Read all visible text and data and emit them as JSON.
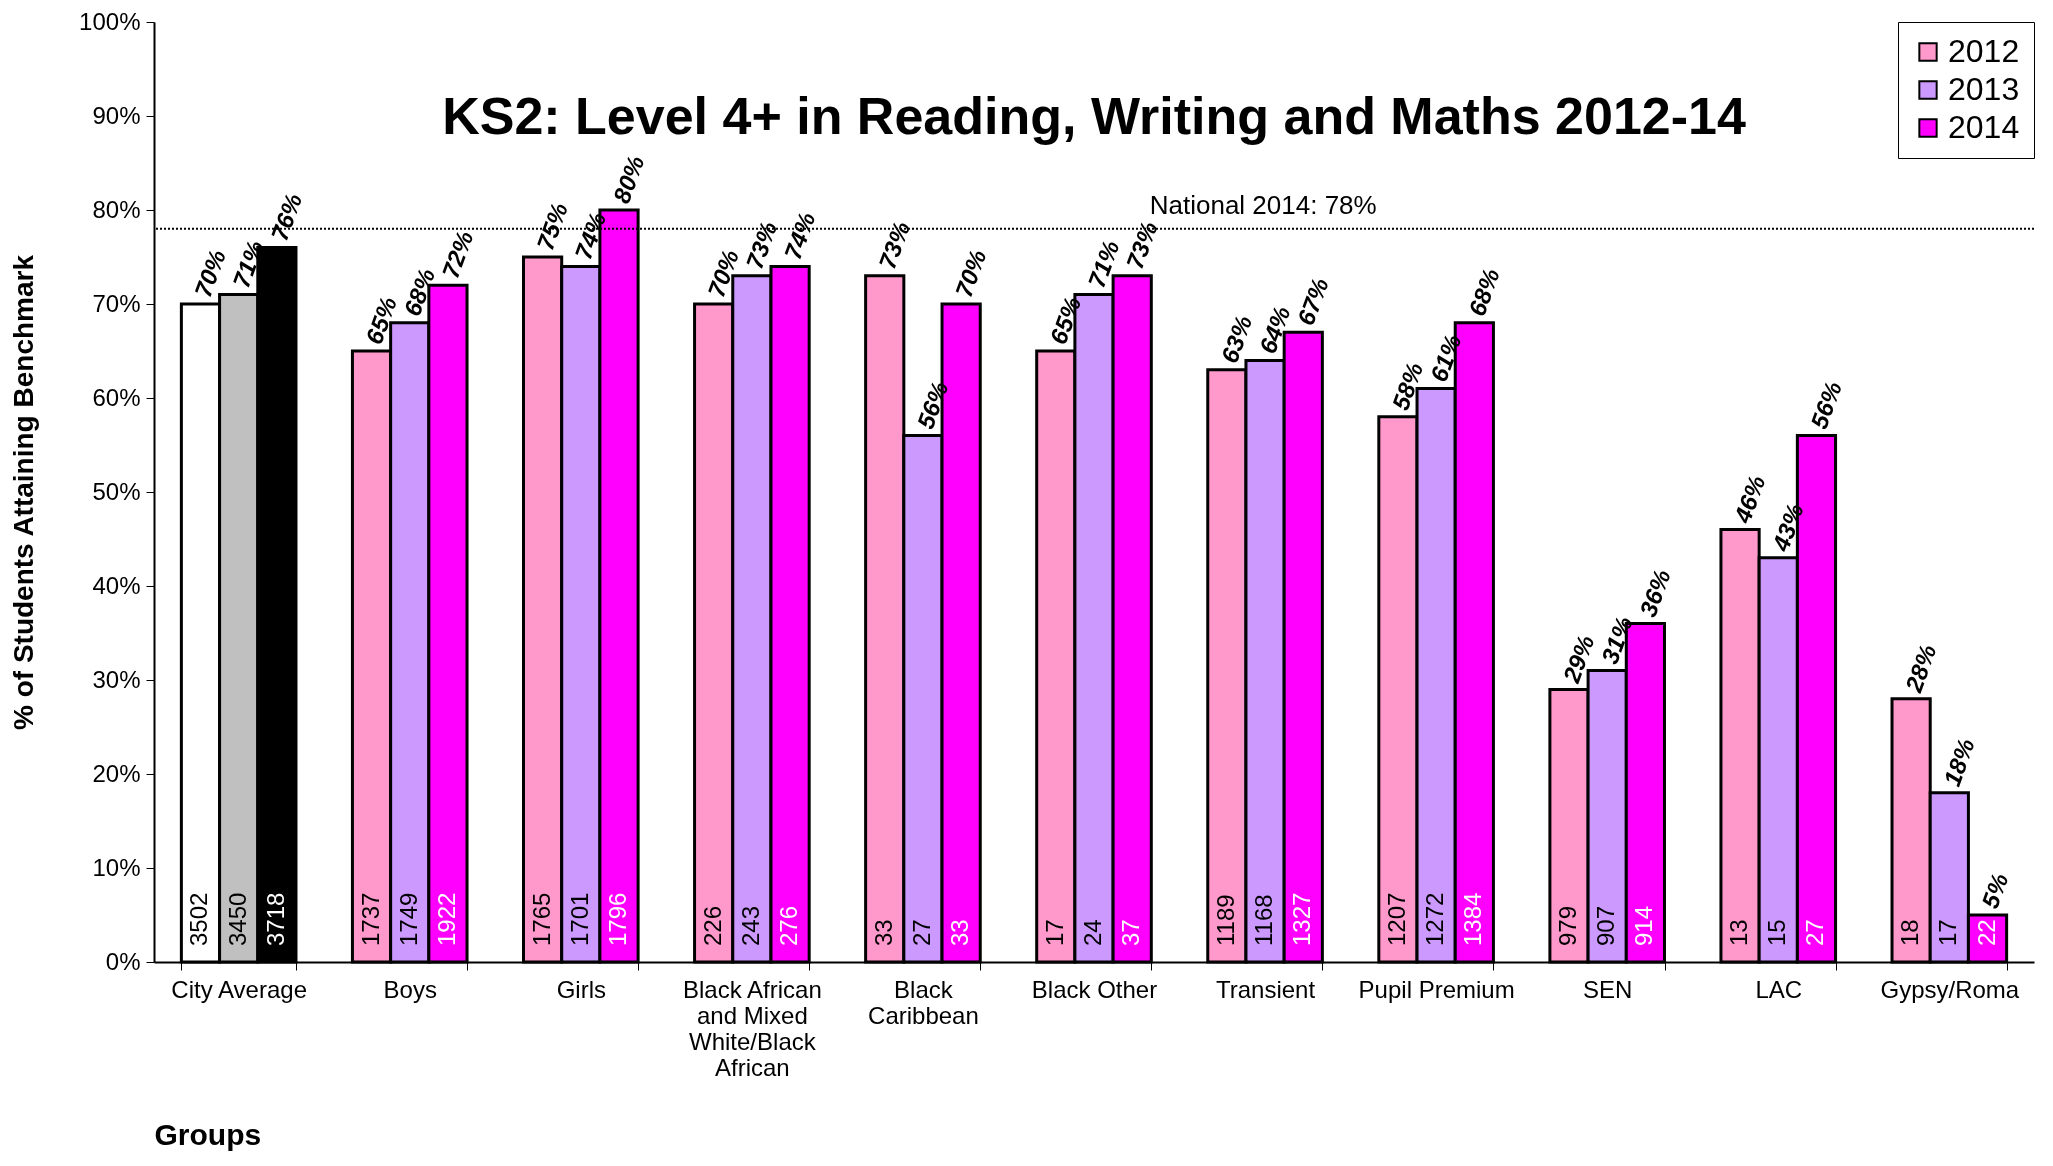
{
  "chart_data": {
    "type": "bar",
    "title": "KS2: Level 4+ in Reading, Writing and Maths 2012-14",
    "xlabel": "Groups",
    "ylabel": "% of Students Attaining Benchmark",
    "categories": [
      "City Average",
      "Boys",
      "Girls",
      "Black African and Mixed White/Black African",
      "Black Caribbean",
      "Black Other",
      "Transient",
      "Pupil Premium",
      "SEN",
      "LAC",
      "Gypsy/Roma"
    ],
    "series": [
      {
        "name": "2012",
        "color": "#ff99cc",
        "colors": [
          "#ffffff",
          "#ff99cc",
          "#ff99cc",
          "#ff99cc",
          "#ff99cc",
          "#ff99cc",
          "#ff99cc",
          "#ff99cc",
          "#ff99cc",
          "#ff99cc",
          "#ff99cc"
        ],
        "values": [
          70,
          65,
          75,
          70,
          73,
          65,
          63,
          58,
          29,
          46,
          28
        ],
        "value_labels": [
          "70%",
          "65%",
          "75%",
          "70%",
          "73%",
          "65%",
          "63%",
          "58%",
          "29%",
          "46%",
          "28%"
        ]
      },
      {
        "name": "2013",
        "color": "#cc99ff",
        "colors": [
          "#c0c0c0",
          "#cc99ff",
          "#cc99ff",
          "#cc99ff",
          "#cc99ff",
          "#cc99ff",
          "#cc99ff",
          "#cc99ff",
          "#cc99ff",
          "#cc99ff",
          "#cc99ff"
        ],
        "values": [
          71,
          68,
          74,
          73,
          56,
          71,
          64,
          61,
          31,
          43,
          18
        ],
        "value_labels": [
          "71%",
          "68%",
          "74%",
          "73%",
          "56%",
          "71%",
          "64%",
          "61%",
          "31%",
          "43%",
          "18%"
        ]
      },
      {
        "name": "2014",
        "color": "#ff00ff",
        "colors": [
          "#000000",
          "#ff00ff",
          "#ff00ff",
          "#ff00ff",
          "#ff00ff",
          "#ff00ff",
          "#ff00ff",
          "#ff00ff",
          "#ff00ff",
          "#ff00ff",
          "#ff00ff"
        ],
        "values": [
          76,
          72,
          80,
          74,
          70,
          73,
          67,
          68,
          36,
          56,
          5
        ],
        "value_labels": [
          "76%",
          "72%",
          "80%",
          "74%",
          "70%",
          "73%",
          "67%",
          "68%",
          "36%",
          "56%",
          "5%"
        ]
      }
    ],
    "annotations": [
      {
        "text": "3502",
        "x": "City Average",
        "y": 0
      },
      {
        "text": "3450",
        "x": "City Average",
        "y": 0
      },
      {
        "text": "3718",
        "x": "City Average",
        "y": 0
      },
      {
        "text": "1737",
        "x": "Boys",
        "y": 0
      },
      {
        "text": "1749",
        "x": "Boys",
        "y": 0
      },
      {
        "text": "1922",
        "x": "Boys",
        "y": 0
      },
      {
        "text": "1765",
        "x": "Girls",
        "y": 0
      },
      {
        "text": "1701",
        "x": "Girls",
        "y": 0
      },
      {
        "text": "1796",
        "x": "Girls",
        "y": 0
      },
      {
        "text": "226",
        "x": "Black African and Mixed White/Black African",
        "y": 0
      },
      {
        "text": "243",
        "x": "Black African and Mixed White/Black African",
        "y": 0
      },
      {
        "text": "276",
        "x": "Black African and Mixed White/Black African",
        "y": 0
      },
      {
        "text": "33",
        "x": "Black Caribbean",
        "y": 0
      },
      {
        "text": "27",
        "x": "Black Caribbean",
        "y": 0
      },
      {
        "text": "33",
        "x": "Black Caribbean",
        "y": 0
      },
      {
        "text": "17",
        "x": "Black Other",
        "y": 0
      },
      {
        "text": "24",
        "x": "Black Other",
        "y": 0
      },
      {
        "text": "37",
        "x": "Black Other",
        "y": 0
      },
      {
        "text": "1189",
        "x": "Transient",
        "y": 0
      },
      {
        "text": "1168",
        "x": "Transient",
        "y": 0
      },
      {
        "text": "1327",
        "x": "Transient",
        "y": 0
      },
      {
        "text": "1207",
        "x": "Pupil Premium",
        "y": 0
      },
      {
        "text": "1272",
        "x": "Pupil Premium",
        "y": 0
      },
      {
        "text": "1384",
        "x": "Pupil Premium",
        "y": 0
      },
      {
        "text": "979",
        "x": "SEN",
        "y": 0
      },
      {
        "text": "907",
        "x": "SEN",
        "y": 0
      },
      {
        "text": "914",
        "x": "SEN",
        "y": 0
      },
      {
        "text": "13",
        "x": "LAC",
        "y": 0
      },
      {
        "text": "15",
        "x": "LAC",
        "y": 0
      },
      {
        "text": "27",
        "x": "LAC",
        "y": 0
      },
      {
        "text": "18",
        "x": "Gypsy/Roma",
        "y": 0
      },
      {
        "text": "17",
        "x": "Gypsy/Roma",
        "y": 0
      },
      {
        "text": "22",
        "x": "Gypsy/Roma",
        "y": 0
      }
    ],
    "ylim": [
      0,
      100
    ],
    "yticks": [
      {
        "value": 0,
        "label": "0%"
      },
      {
        "value": 10,
        "label": "10%"
      },
      {
        "value": 20,
        "label": "20%"
      },
      {
        "value": 30,
        "label": "30%"
      },
      {
        "value": 40,
        "label": "40%"
      },
      {
        "value": 50,
        "label": "50%"
      },
      {
        "value": 60,
        "label": "60%"
      },
      {
        "value": 70,
        "label": "70%"
      },
      {
        "value": 80,
        "label": "80%"
      },
      {
        "value": 90,
        "label": "90%"
      },
      {
        "value": 100,
        "label": "100%"
      }
    ],
    "ref_lines": [
      {
        "axis": "y",
        "value": 78,
        "label": "National 2014:  78%",
        "line_style": "dotted",
        "color": "#000000"
      }
    ],
    "legend": "top right",
    "grid": false
  }
}
